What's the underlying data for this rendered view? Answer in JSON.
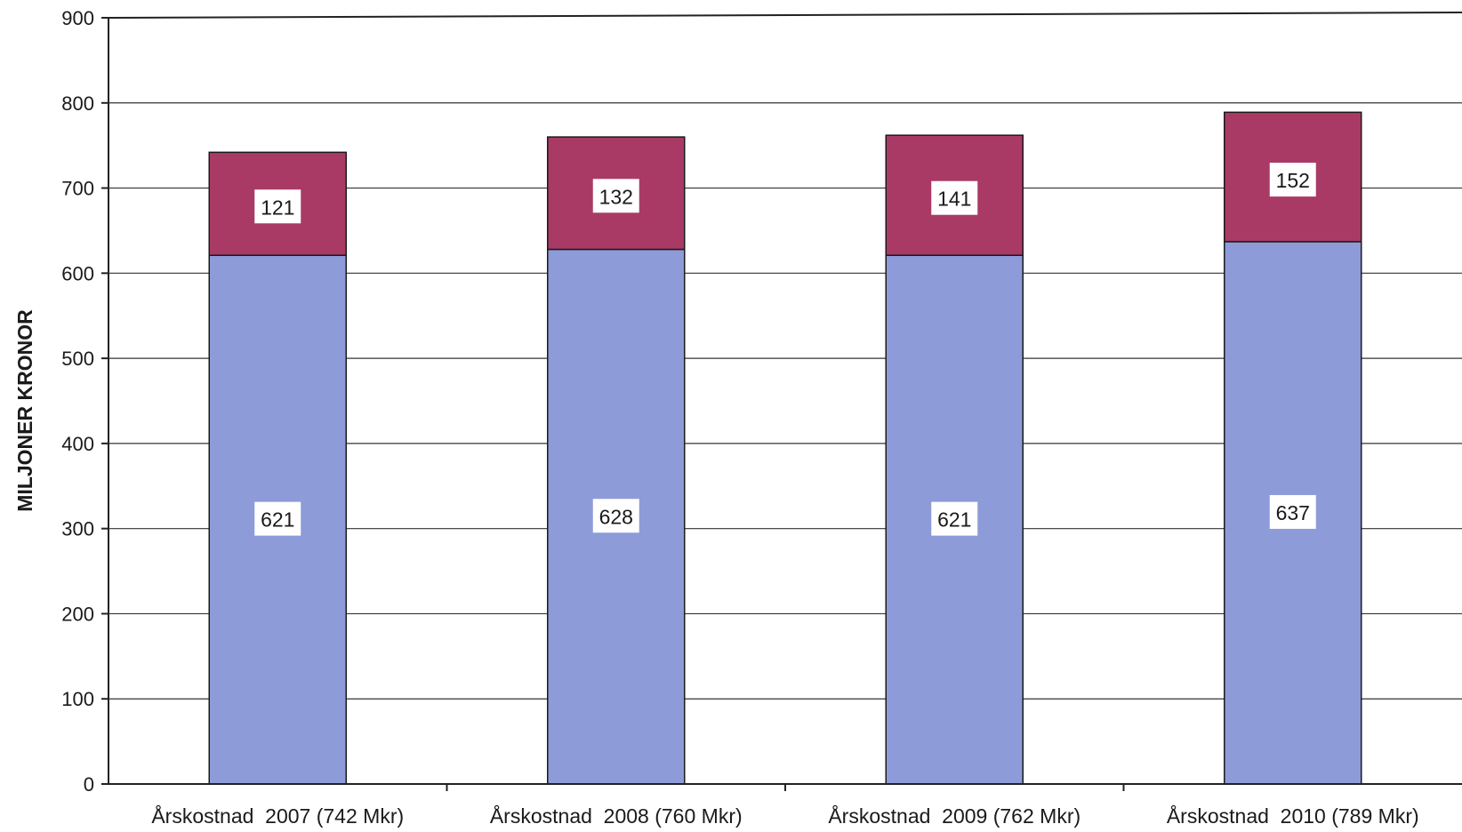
{
  "chart_data": {
    "type": "bar",
    "stacked": true,
    "categories": [
      "Årskostnad  2007 (742 Mkr)",
      "Årskostnad  2008 (760 Mkr)",
      "Årskostnad  2009 (762 Mkr)",
      "Årskostnad  2010 (789 Mkr)"
    ],
    "series": [
      {
        "values": [
          621,
          628,
          621,
          637
        ],
        "color": "#8e9bd9"
      },
      {
        "values": [
          121,
          132,
          141,
          152
        ],
        "color": "#a93a66"
      }
    ],
    "ylabel": "MILJONER KRONOR",
    "ylim": [
      0,
      900
    ],
    "yticks": [
      0,
      100,
      200,
      300,
      400,
      500,
      600,
      700,
      800,
      900
    ],
    "grid": true,
    "legend": "none"
  }
}
